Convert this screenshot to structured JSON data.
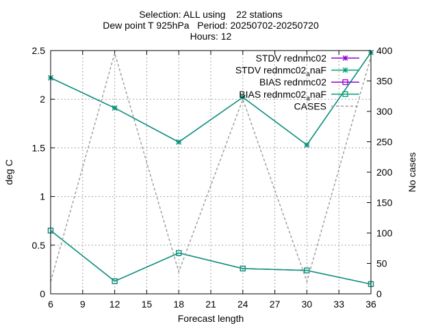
{
  "chart_data": {
    "type": "line",
    "title_lines": [
      "Selection: ALL using    22 stations",
      "Dew point T 925hPa   Period: 20250702-20250720",
      "Hours: 12"
    ],
    "xlabel": "Forecast length",
    "ylabel": "deg C",
    "y2label": "No cases",
    "xlim": [
      6,
      36
    ],
    "ylim": [
      0,
      2.5
    ],
    "y2lim": [
      0,
      400
    ],
    "xticks": [
      "6",
      "9",
      "12",
      "15",
      "18",
      "21",
      "24",
      "27",
      "30",
      "33",
      "36"
    ],
    "yticks": [
      "0",
      "0.5",
      "1",
      "1.5",
      "2",
      "2.5"
    ],
    "y2ticks": [
      "0",
      "50",
      "100",
      "150",
      "200",
      "250",
      "300",
      "350",
      "400"
    ],
    "grid": true,
    "legend_position": "top-right",
    "x": [
      6,
      12,
      18,
      24,
      30,
      36
    ],
    "series": [
      {
        "name": "STDV rednmc02",
        "axis": "y1",
        "marker": "star",
        "color": "#9400d3",
        "dashed": false,
        "values": [
          2.22,
          1.91,
          1.56,
          2.02,
          1.53,
          2.48
        ]
      },
      {
        "name": "STDV rednmc02",
        "name_sub": "a",
        "name_suffix": "naF",
        "axis": "y1",
        "marker": "star",
        "color": "#009e73",
        "dashed": false,
        "values": [
          2.22,
          1.91,
          1.56,
          2.02,
          1.53,
          2.48
        ]
      },
      {
        "name": "BIAS rednmc02",
        "axis": "y1",
        "marker": "square",
        "color": "#9400d3",
        "dashed": false,
        "values": [
          0.65,
          0.13,
          0.42,
          0.26,
          0.24,
          0.1
        ]
      },
      {
        "name": "BIAS rednmc02",
        "name_sub": "a",
        "name_suffix": "naF",
        "axis": "y1",
        "marker": "square",
        "color": "#009e73",
        "dashed": false,
        "values": [
          0.65,
          0.13,
          0.42,
          0.26,
          0.24,
          0.1
        ]
      },
      {
        "name": "CASES",
        "axis": "y2",
        "marker": "none",
        "color": "#a0a0a0",
        "dashed": true,
        "values": [
          20,
          396,
          36,
          320,
          20,
          390
        ]
      }
    ]
  }
}
